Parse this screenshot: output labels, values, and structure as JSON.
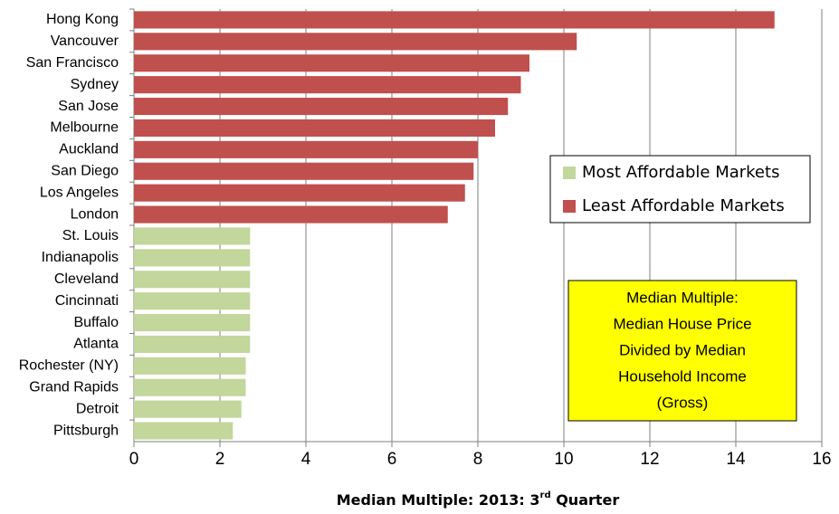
{
  "chart_data": {
    "type": "hbar",
    "categories": [
      "Hong Kong",
      "Vancouver",
      "San Francisco",
      "Sydney",
      "San Jose",
      "Melbourne",
      "Auckland",
      "San Diego",
      "Los Angeles",
      "London",
      "St. Louis",
      "Indianapolis",
      "Cleveland",
      "Cincinnati",
      "Buffalo",
      "Atlanta",
      "Rochester (NY)",
      "Grand Rapids",
      "Detroit",
      "Pittsburgh"
    ],
    "series": [
      {
        "name": "Most Affordable Markets",
        "color": "#c3d69b",
        "values": [
          null,
          null,
          null,
          null,
          null,
          null,
          null,
          null,
          null,
          null,
          2.7,
          2.7,
          2.7,
          2.7,
          2.7,
          2.7,
          2.6,
          2.6,
          2.5,
          2.3
        ]
      },
      {
        "name": "Least Affordable Markets",
        "color": "#c0504d",
        "values": [
          14.9,
          10.3,
          9.2,
          9.0,
          8.7,
          8.4,
          8.0,
          7.9,
          7.7,
          7.3,
          null,
          null,
          null,
          null,
          null,
          null,
          null,
          null,
          null,
          null
        ]
      }
    ],
    "xlim": [
      0,
      16
    ],
    "xticks": [
      0,
      2,
      4,
      6,
      8,
      10,
      12,
      14,
      16
    ],
    "grid": true,
    "x_label": [
      "Median Multiple: 2013: 3",
      "rd",
      " Quarter"
    ],
    "annotation": [
      "Median Multiple:",
      "Median House Price",
      "Divided by Median",
      "Household Income",
      "(Gross)"
    ]
  }
}
